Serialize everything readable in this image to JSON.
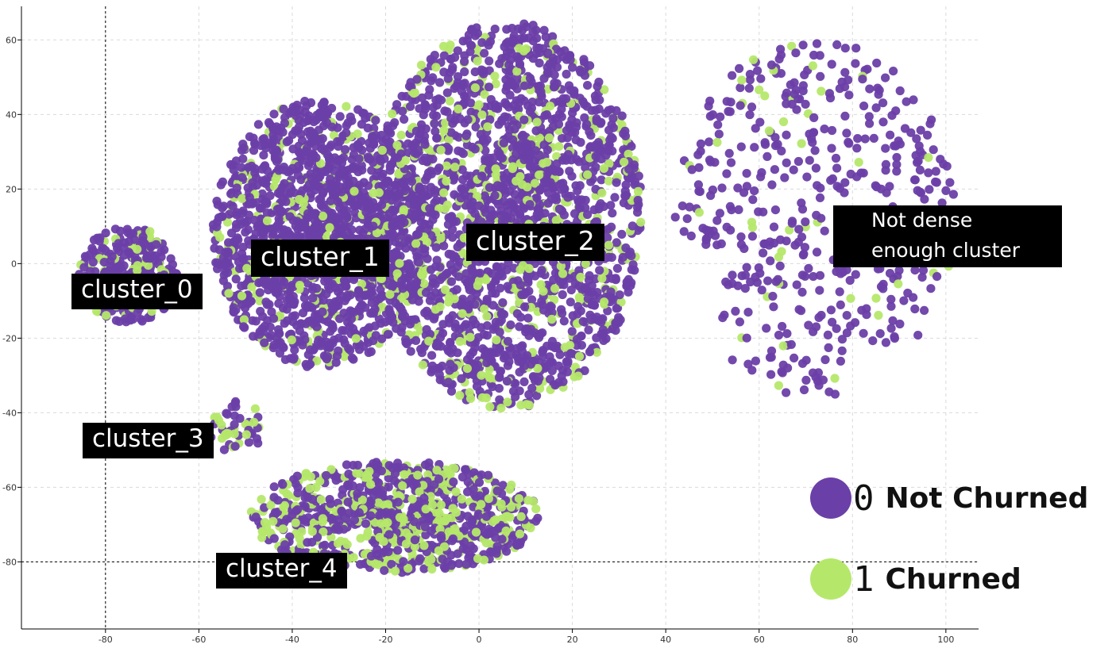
{
  "chart_data": {
    "type": "scatter",
    "title": "",
    "xlabel": "",
    "ylabel": "",
    "xlim": [
      -98,
      107
    ],
    "ylim": [
      -98,
      69
    ],
    "x_ticks": [
      -80,
      -60,
      -40,
      -20,
      0,
      20,
      40,
      60,
      80,
      100
    ],
    "y_ticks": [
      60,
      40,
      20,
      0,
      -20,
      -40,
      -60,
      -80
    ],
    "grid": true,
    "reference_lines": {
      "x": -80,
      "y": -80
    },
    "series": [
      {
        "key": "0",
        "color": "#6B3FA8"
      },
      {
        "key": "1",
        "color": "#B5E86A"
      }
    ],
    "clusters": [
      {
        "id": "cluster_0",
        "center": [
          -75,
          -3
        ],
        "spread": [
          11,
          13
        ],
        "count": 330,
        "churn_share": 0.22,
        "shape": "ellipse"
      },
      {
        "id": "cluster_1",
        "center": [
          -34,
          8
        ],
        "spread": [
          23,
          36
        ],
        "count": 1550,
        "churn_share": 0.14,
        "shape": "ellipse"
      },
      {
        "id": "cluster_2",
        "center": [
          6,
          13
        ],
        "spread": [
          29,
          52
        ],
        "count": 2100,
        "churn_share": 0.2,
        "shape": "ellipse"
      },
      {
        "id": "cluster_3",
        "center": [
          -52,
          -44
        ],
        "spread": [
          6,
          7
        ],
        "count": 45,
        "churn_share": 0.5,
        "shape": "ellipse"
      },
      {
        "id": "cluster_4",
        "center": [
          -18,
          -68
        ],
        "spread": [
          31,
          15
        ],
        "count": 950,
        "churn_share": 0.38,
        "shape": "ellipse"
      },
      {
        "id": "sparse",
        "center": [
          72,
          12
        ],
        "spread": [
          30,
          48
        ],
        "count": 520,
        "churn_share": 0.09,
        "shape": "sparse"
      }
    ],
    "annotations": {
      "cluster_0": "cluster_0",
      "cluster_1": "cluster_1",
      "cluster_2": "cluster_2",
      "cluster_3": "cluster_3",
      "cluster_4": "cluster_4",
      "sparse_line1": "Not dense",
      "sparse_line2": "enough cluster"
    },
    "legend": [
      {
        "code": "0",
        "label": "Not Churned",
        "color": "#6B3FA8"
      },
      {
        "code": "1",
        "label": "Churned",
        "color": "#B5E86A"
      }
    ],
    "legend_position": "bottom-right"
  }
}
